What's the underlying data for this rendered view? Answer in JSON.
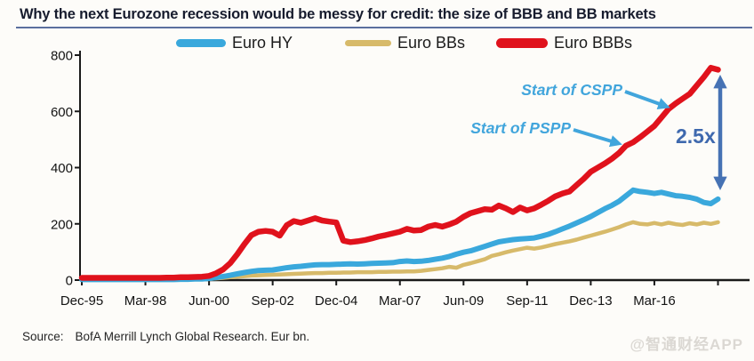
{
  "title": "Why the next Eurozone recession would be messy for credit: the size of BBB and BB markets",
  "source": {
    "label": "Source:",
    "text": "BofA Merrill Lynch Global Research. Eur bn."
  },
  "watermark": "@智通财经APP",
  "chart_data": {
    "type": "line",
    "title": "Why the next Eurozone recession would be messy for credit: the size of BBB and BB markets",
    "ylabel": "Eur bn",
    "ylim": [
      0,
      800
    ],
    "y_ticks": [
      0,
      200,
      400,
      600,
      800
    ],
    "x_tick_labels": [
      "Dec-95",
      "Mar-98",
      "Jun-00",
      "Sep-02",
      "Dec-04",
      "Mar-07",
      "Jun-09",
      "Sep-11",
      "Dec-13",
      "Mar-16"
    ],
    "x_frequency": "quarterly",
    "points_per_tick": 9,
    "legend_position": "top",
    "grid": false,
    "series": [
      {
        "name": "Euro HY",
        "color": "#3aa8dc",
        "values": [
          2,
          2,
          2,
          2,
          2,
          2,
          2,
          2,
          2,
          2,
          2,
          2,
          2,
          2,
          3,
          3,
          4,
          4,
          6,
          9,
          13,
          17,
          22,
          27,
          31,
          34,
          35,
          36,
          40,
          44,
          47,
          49,
          52,
          54,
          55,
          55,
          56,
          57,
          58,
          57,
          58,
          59,
          60,
          61,
          62,
          66,
          68,
          66,
          67,
          70,
          74,
          78,
          84,
          92,
          99,
          104,
          112,
          120,
          128,
          136,
          140,
          144,
          146,
          148,
          150,
          156,
          163,
          172,
          182,
          192,
          203,
          214,
          226,
          240,
          254,
          266,
          280,
          300,
          320,
          315,
          312,
          308,
          312,
          306,
          300,
          298,
          294,
          288,
          276,
          272,
          288
        ]
      },
      {
        "name": "Euro BBs",
        "color": "#d7ba6a",
        "values": [
          1,
          1,
          1,
          1,
          1,
          1,
          1,
          1,
          1,
          1,
          1,
          1,
          1,
          1,
          2,
          2,
          3,
          3,
          4,
          6,
          8,
          10,
          12,
          14,
          16,
          17,
          18,
          19,
          20,
          21,
          22,
          23,
          24,
          25,
          25,
          26,
          26,
          27,
          27,
          28,
          28,
          28,
          29,
          29,
          30,
          30,
          31,
          31,
          33,
          36,
          39,
          42,
          47,
          44,
          54,
          60,
          67,
          74,
          86,
          92,
          99,
          105,
          110,
          115,
          112,
          116,
          122,
          128,
          133,
          138,
          144,
          151,
          158,
          165,
          172,
          180,
          188,
          198,
          206,
          200,
          198,
          203,
          198,
          204,
          199,
          196,
          202,
          198,
          204,
          200,
          206
        ]
      },
      {
        "name": "Euro BBBs",
        "color": "#e0121c",
        "values": [
          8,
          8,
          8,
          8,
          8,
          8,
          8,
          8,
          8,
          8,
          8,
          8,
          9,
          9,
          10,
          10,
          11,
          12,
          15,
          24,
          38,
          60,
          92,
          128,
          160,
          172,
          175,
          172,
          158,
          195,
          210,
          204,
          212,
          220,
          212,
          208,
          205,
          140,
          135,
          138,
          142,
          148,
          155,
          160,
          166,
          172,
          182,
          176,
          178,
          190,
          196,
          190,
          198,
          208,
          225,
          238,
          245,
          252,
          250,
          265,
          255,
          242,
          258,
          248,
          255,
          268,
          282,
          298,
          308,
          315,
          338,
          360,
          385,
          400,
          415,
          432,
          452,
          478,
          490,
          508,
          528,
          548,
          578,
          608,
          628,
          645,
          662,
          692,
          722,
          755,
          748
        ]
      }
    ],
    "annotations": [
      {
        "text": "Start of CSPP",
        "color": "#41a5dc"
      },
      {
        "text": "Start of PSPP",
        "color": "#41a5dc"
      },
      {
        "text": "2.5x",
        "color": "#3f69ae"
      }
    ],
    "colors": {
      "axis": "#1a1a1a",
      "multiplier_arrow": "#4672b4"
    }
  }
}
